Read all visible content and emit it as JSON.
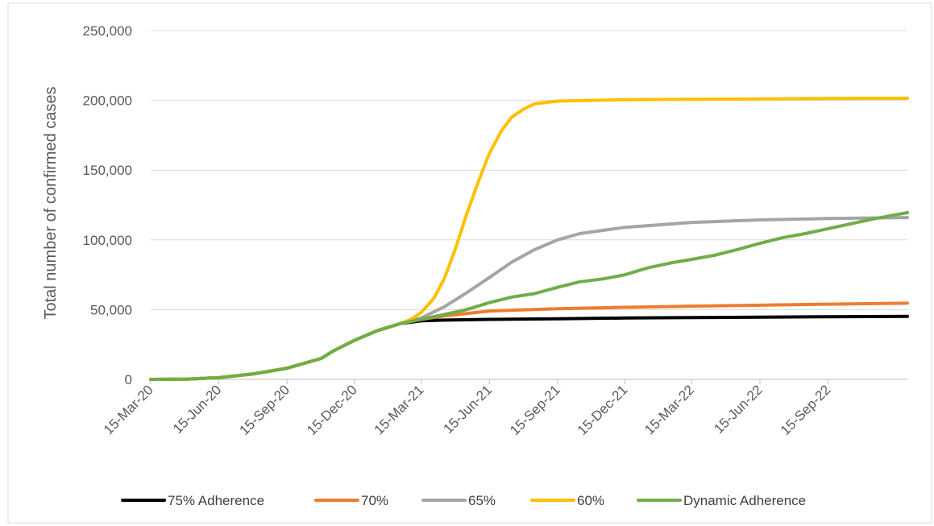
{
  "chart_data": {
    "type": "line",
    "title": "",
    "xlabel": "",
    "ylabel": "Total number of confirmed cases",
    "x_axis": {
      "type": "date",
      "range": [
        "2020-03-15",
        "2022-12-31"
      ],
      "tick_values": [
        "2020-03-15",
        "2020-06-15",
        "2020-09-15",
        "2020-12-15",
        "2021-03-15",
        "2021-06-15",
        "2021-09-15",
        "2021-12-15",
        "2022-03-15",
        "2022-06-15",
        "2022-09-15"
      ],
      "tick_labels": [
        "15-Mar-20",
        "15-Jun-20",
        "15-Sep-20",
        "15-Dec-20",
        "15-Mar-21",
        "15-Jun-21",
        "15-Sep-21",
        "15-Dec-21",
        "15-Mar-22",
        "15-Jun-22",
        "15-Sep-22"
      ]
    },
    "y_axis": {
      "ylim": [
        0,
        250000
      ],
      "tick_values": [
        0,
        50000,
        100000,
        150000,
        200000,
        250000
      ],
      "tick_labels": [
        "0",
        "50,000",
        "100,000",
        "150,000",
        "200,000",
        "250,000"
      ]
    },
    "grid": true,
    "legend_position": "bottom",
    "series": [
      {
        "name": "75% Adherence",
        "color": "#000000",
        "points": [
          [
            "2020-03-15",
            0
          ],
          [
            "2020-05-01",
            200
          ],
          [
            "2020-06-15",
            1200
          ],
          [
            "2020-08-01",
            4000
          ],
          [
            "2020-09-15",
            8000
          ],
          [
            "2020-10-31",
            15000
          ],
          [
            "2020-11-15",
            20000
          ],
          [
            "2020-12-15",
            28000
          ],
          [
            "2021-01-15",
            35000
          ],
          [
            "2021-02-15",
            40000
          ],
          [
            "2021-03-15",
            42000
          ],
          [
            "2021-04-15",
            42500
          ],
          [
            "2021-06-15",
            43000
          ],
          [
            "2021-09-15",
            43500
          ],
          [
            "2021-12-15",
            44000
          ],
          [
            "2022-03-15",
            44300
          ],
          [
            "2022-06-15",
            44600
          ],
          [
            "2022-09-15",
            44900
          ],
          [
            "2022-12-31",
            45200
          ]
        ]
      },
      {
        "name": "70%",
        "color": "#ed7d31",
        "points": [
          [
            "2020-03-15",
            0
          ],
          [
            "2020-05-01",
            200
          ],
          [
            "2020-06-15",
            1200
          ],
          [
            "2020-08-01",
            4000
          ],
          [
            "2020-09-15",
            8000
          ],
          [
            "2020-10-31",
            15000
          ],
          [
            "2020-11-15",
            20000
          ],
          [
            "2020-12-15",
            28000
          ],
          [
            "2021-01-15",
            35000
          ],
          [
            "2021-02-15",
            40000
          ],
          [
            "2021-03-15",
            43000
          ],
          [
            "2021-04-15",
            45500
          ],
          [
            "2021-06-15",
            49000
          ],
          [
            "2021-09-15",
            50700
          ],
          [
            "2021-12-15",
            51700
          ],
          [
            "2022-03-15",
            52500
          ],
          [
            "2022-06-15",
            53200
          ],
          [
            "2022-09-15",
            53900
          ],
          [
            "2022-12-31",
            54600
          ]
        ]
      },
      {
        "name": "65%",
        "color": "#a5a5a5",
        "points": [
          [
            "2020-03-15",
            0
          ],
          [
            "2020-05-01",
            200
          ],
          [
            "2020-06-15",
            1200
          ],
          [
            "2020-08-01",
            4000
          ],
          [
            "2020-09-15",
            8000
          ],
          [
            "2020-10-31",
            15000
          ],
          [
            "2020-11-15",
            20000
          ],
          [
            "2020-12-15",
            28000
          ],
          [
            "2021-01-15",
            35000
          ],
          [
            "2021-02-15",
            40000
          ],
          [
            "2021-03-15",
            44000
          ],
          [
            "2021-04-15",
            52000
          ],
          [
            "2021-05-15",
            62000
          ],
          [
            "2021-06-15",
            73000
          ],
          [
            "2021-07-15",
            84000
          ],
          [
            "2021-08-15",
            93000
          ],
          [
            "2021-09-15",
            100000
          ],
          [
            "2021-10-15",
            104500
          ],
          [
            "2021-12-15",
            109000
          ],
          [
            "2022-03-15",
            112500
          ],
          [
            "2022-06-15",
            114300
          ],
          [
            "2022-09-15",
            115300
          ],
          [
            "2022-12-31",
            116000
          ]
        ]
      },
      {
        "name": "60%",
        "color": "#ffc000",
        "points": [
          [
            "2020-03-15",
            0
          ],
          [
            "2020-05-01",
            200
          ],
          [
            "2020-06-15",
            1200
          ],
          [
            "2020-08-01",
            4000
          ],
          [
            "2020-09-15",
            8000
          ],
          [
            "2020-10-31",
            15000
          ],
          [
            "2020-11-15",
            20000
          ],
          [
            "2020-12-15",
            28000
          ],
          [
            "2021-01-15",
            35000
          ],
          [
            "2021-02-15",
            40000
          ],
          [
            "2021-03-01",
            43000
          ],
          [
            "2021-03-15",
            48000
          ],
          [
            "2021-04-01",
            58000
          ],
          [
            "2021-04-15",
            72000
          ],
          [
            "2021-05-01",
            95000
          ],
          [
            "2021-05-15",
            118000
          ],
          [
            "2021-06-01",
            143000
          ],
          [
            "2021-06-15",
            162000
          ],
          [
            "2021-07-01",
            178000
          ],
          [
            "2021-07-15",
            188000
          ],
          [
            "2021-08-01",
            194000
          ],
          [
            "2021-08-15",
            197500
          ],
          [
            "2021-09-15",
            199500
          ],
          [
            "2021-12-15",
            200500
          ],
          [
            "2022-03-15",
            200800
          ],
          [
            "2022-06-15",
            201000
          ],
          [
            "2022-09-15",
            201300
          ],
          [
            "2022-12-31",
            201500
          ]
        ]
      },
      {
        "name": "Dynamic Adherence",
        "color": "#70ad47",
        "points": [
          [
            "2020-03-15",
            0
          ],
          [
            "2020-05-01",
            200
          ],
          [
            "2020-06-15",
            1200
          ],
          [
            "2020-08-01",
            4000
          ],
          [
            "2020-09-15",
            8000
          ],
          [
            "2020-10-31",
            15000
          ],
          [
            "2020-11-15",
            20000
          ],
          [
            "2020-12-15",
            28000
          ],
          [
            "2021-01-15",
            35000
          ],
          [
            "2021-02-15",
            40000
          ],
          [
            "2021-03-15",
            43000
          ],
          [
            "2021-04-15",
            46500
          ],
          [
            "2021-05-15",
            50000
          ],
          [
            "2021-06-15",
            55000
          ],
          [
            "2021-07-15",
            59000
          ],
          [
            "2021-08-15",
            61500
          ],
          [
            "2021-09-15",
            66000
          ],
          [
            "2021-10-15",
            70000
          ],
          [
            "2021-11-15",
            72000
          ],
          [
            "2021-12-15",
            75000
          ],
          [
            "2022-01-15",
            80000
          ],
          [
            "2022-02-15",
            83500
          ],
          [
            "2022-03-15",
            86000
          ],
          [
            "2022-04-15",
            89000
          ],
          [
            "2022-05-15",
            93000
          ],
          [
            "2022-06-15",
            97500
          ],
          [
            "2022-07-15",
            101500
          ],
          [
            "2022-08-15",
            104500
          ],
          [
            "2022-09-15",
            108000
          ],
          [
            "2022-10-15",
            111500
          ],
          [
            "2022-11-15",
            115000
          ],
          [
            "2022-12-31",
            119500
          ]
        ]
      }
    ]
  }
}
